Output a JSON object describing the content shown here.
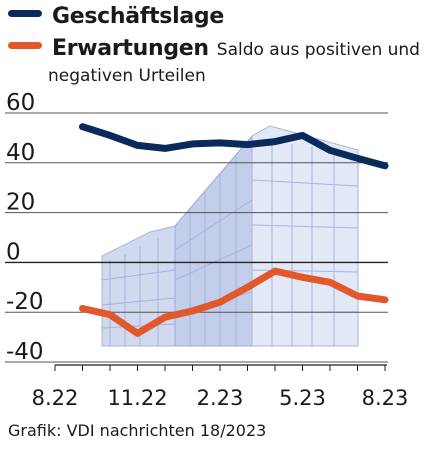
{
  "chart_data": {
    "type": "line",
    "x_ticks": [
      "8.22",
      "11.22",
      "2.23",
      "5.23",
      "8.23"
    ],
    "y_ticks": [
      60,
      40,
      20,
      0,
      -20,
      -40
    ],
    "ylim": [
      -40,
      60
    ],
    "grid": true,
    "legend_position": "top-left",
    "series": [
      {
        "name": "Geschäftslage",
        "color": "#0a2a5c",
        "x": [
          "9.22",
          "10.22",
          "11.22",
          "12.22",
          "1.23",
          "2.23",
          "3.23",
          "4.23",
          "5.23",
          "6.23",
          "7.23",
          "8.23"
        ],
        "values": [
          54.5,
          51,
          47,
          45.8,
          47.6,
          48,
          47.3,
          48.5,
          51,
          45,
          41.8,
          38.8
        ]
      },
      {
        "name": "Erwartungen",
        "color": "#e2582a",
        "x": [
          "9.22",
          "10.22",
          "11.22",
          "12.22",
          "1.23",
          "2.23",
          "3.23",
          "4.23",
          "5.23",
          "6.23",
          "7.23",
          "8.23"
        ],
        "values": [
          -18.5,
          -21,
          -28.5,
          -22,
          -19.5,
          -16,
          -10,
          -3.5,
          -6,
          -8,
          -13.5,
          -15
        ]
      }
    ]
  },
  "legend": {
    "note_line1": "Saldo aus positiven und",
    "note_line2": "negativen Urteilen"
  },
  "source": "Grafik: VDI nachrichten 18/2023"
}
